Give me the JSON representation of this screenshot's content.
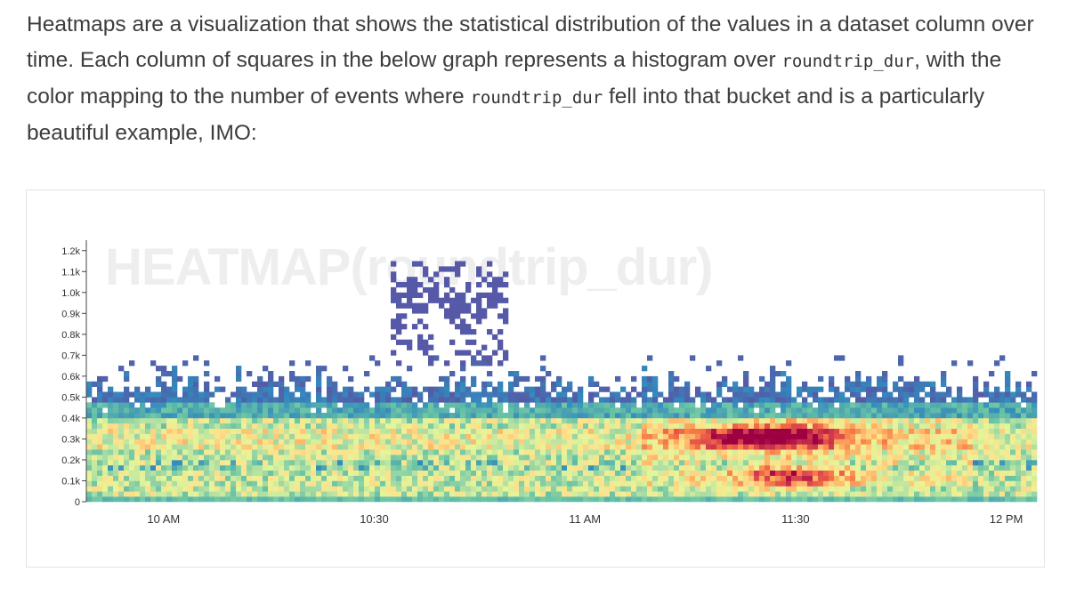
{
  "article": {
    "seg1": "Heatmaps are a visualization that shows the statistical distribution of the values in a dataset column over time. Each column of squares in the below graph represents a histogram over ",
    "code1": "roundtrip_dur",
    "seg2": ", with the color mapping to the number of events where ",
    "code2": "roundtrip_dur",
    "seg3": " fell into that bucket and is a particularly beautiful example, IMO:"
  },
  "chart_data": {
    "type": "heatmap",
    "title": "HEATMAP(roundtrip_dur)",
    "xlabel": "",
    "ylabel": "",
    "x_range_minutes_after_9am": [
      49,
      185
    ],
    "y_range": [
      0,
      1250
    ],
    "y_ticks": [
      {
        "value": 0,
        "label": "0"
      },
      {
        "value": 100,
        "label": "0.1k"
      },
      {
        "value": 200,
        "label": "0.2k"
      },
      {
        "value": 300,
        "label": "0.3k"
      },
      {
        "value": 400,
        "label": "0.4k"
      },
      {
        "value": 500,
        "label": "0.5k"
      },
      {
        "value": 600,
        "label": "0.6k"
      },
      {
        "value": 700,
        "label": "0.7k"
      },
      {
        "value": 800,
        "label": "0.8k"
      },
      {
        "value": 900,
        "label": "0.9k"
      },
      {
        "value": 1000,
        "label": "1.0k"
      },
      {
        "value": 1100,
        "label": "1.1k"
      },
      {
        "value": 1200,
        "label": "1.2k"
      }
    ],
    "x_ticks": [
      {
        "minutes": 60,
        "label": "10 AM"
      },
      {
        "minutes": 90,
        "label": "10:30"
      },
      {
        "minutes": 120,
        "label": "11 AM"
      },
      {
        "minutes": 150,
        "label": "11:30"
      },
      {
        "minutes": 180,
        "label": "12 PM"
      }
    ],
    "bucket_size": 25,
    "color_scale": [
      "#5e4fa2",
      "#3288bd",
      "#66c2a5",
      "#abdda4",
      "#e6f598",
      "#fee08b",
      "#fdae61",
      "#f46d43",
      "#d53e4f",
      "#9e0142"
    ],
    "hotspots": [
      {
        "center_minutes": 149,
        "center_value": 295,
        "peak_intensity": 1.0
      },
      {
        "center_minutes": 149,
        "center_value": 110,
        "peak_intensity": 0.75
      },
      {
        "center_minutes": 140,
        "center_value": 295,
        "peak_intensity": 0.6
      }
    ],
    "outlier_cluster": {
      "minutes_range": [
        92,
        109
      ],
      "value_range": [
        650,
        1150
      ]
    }
  }
}
